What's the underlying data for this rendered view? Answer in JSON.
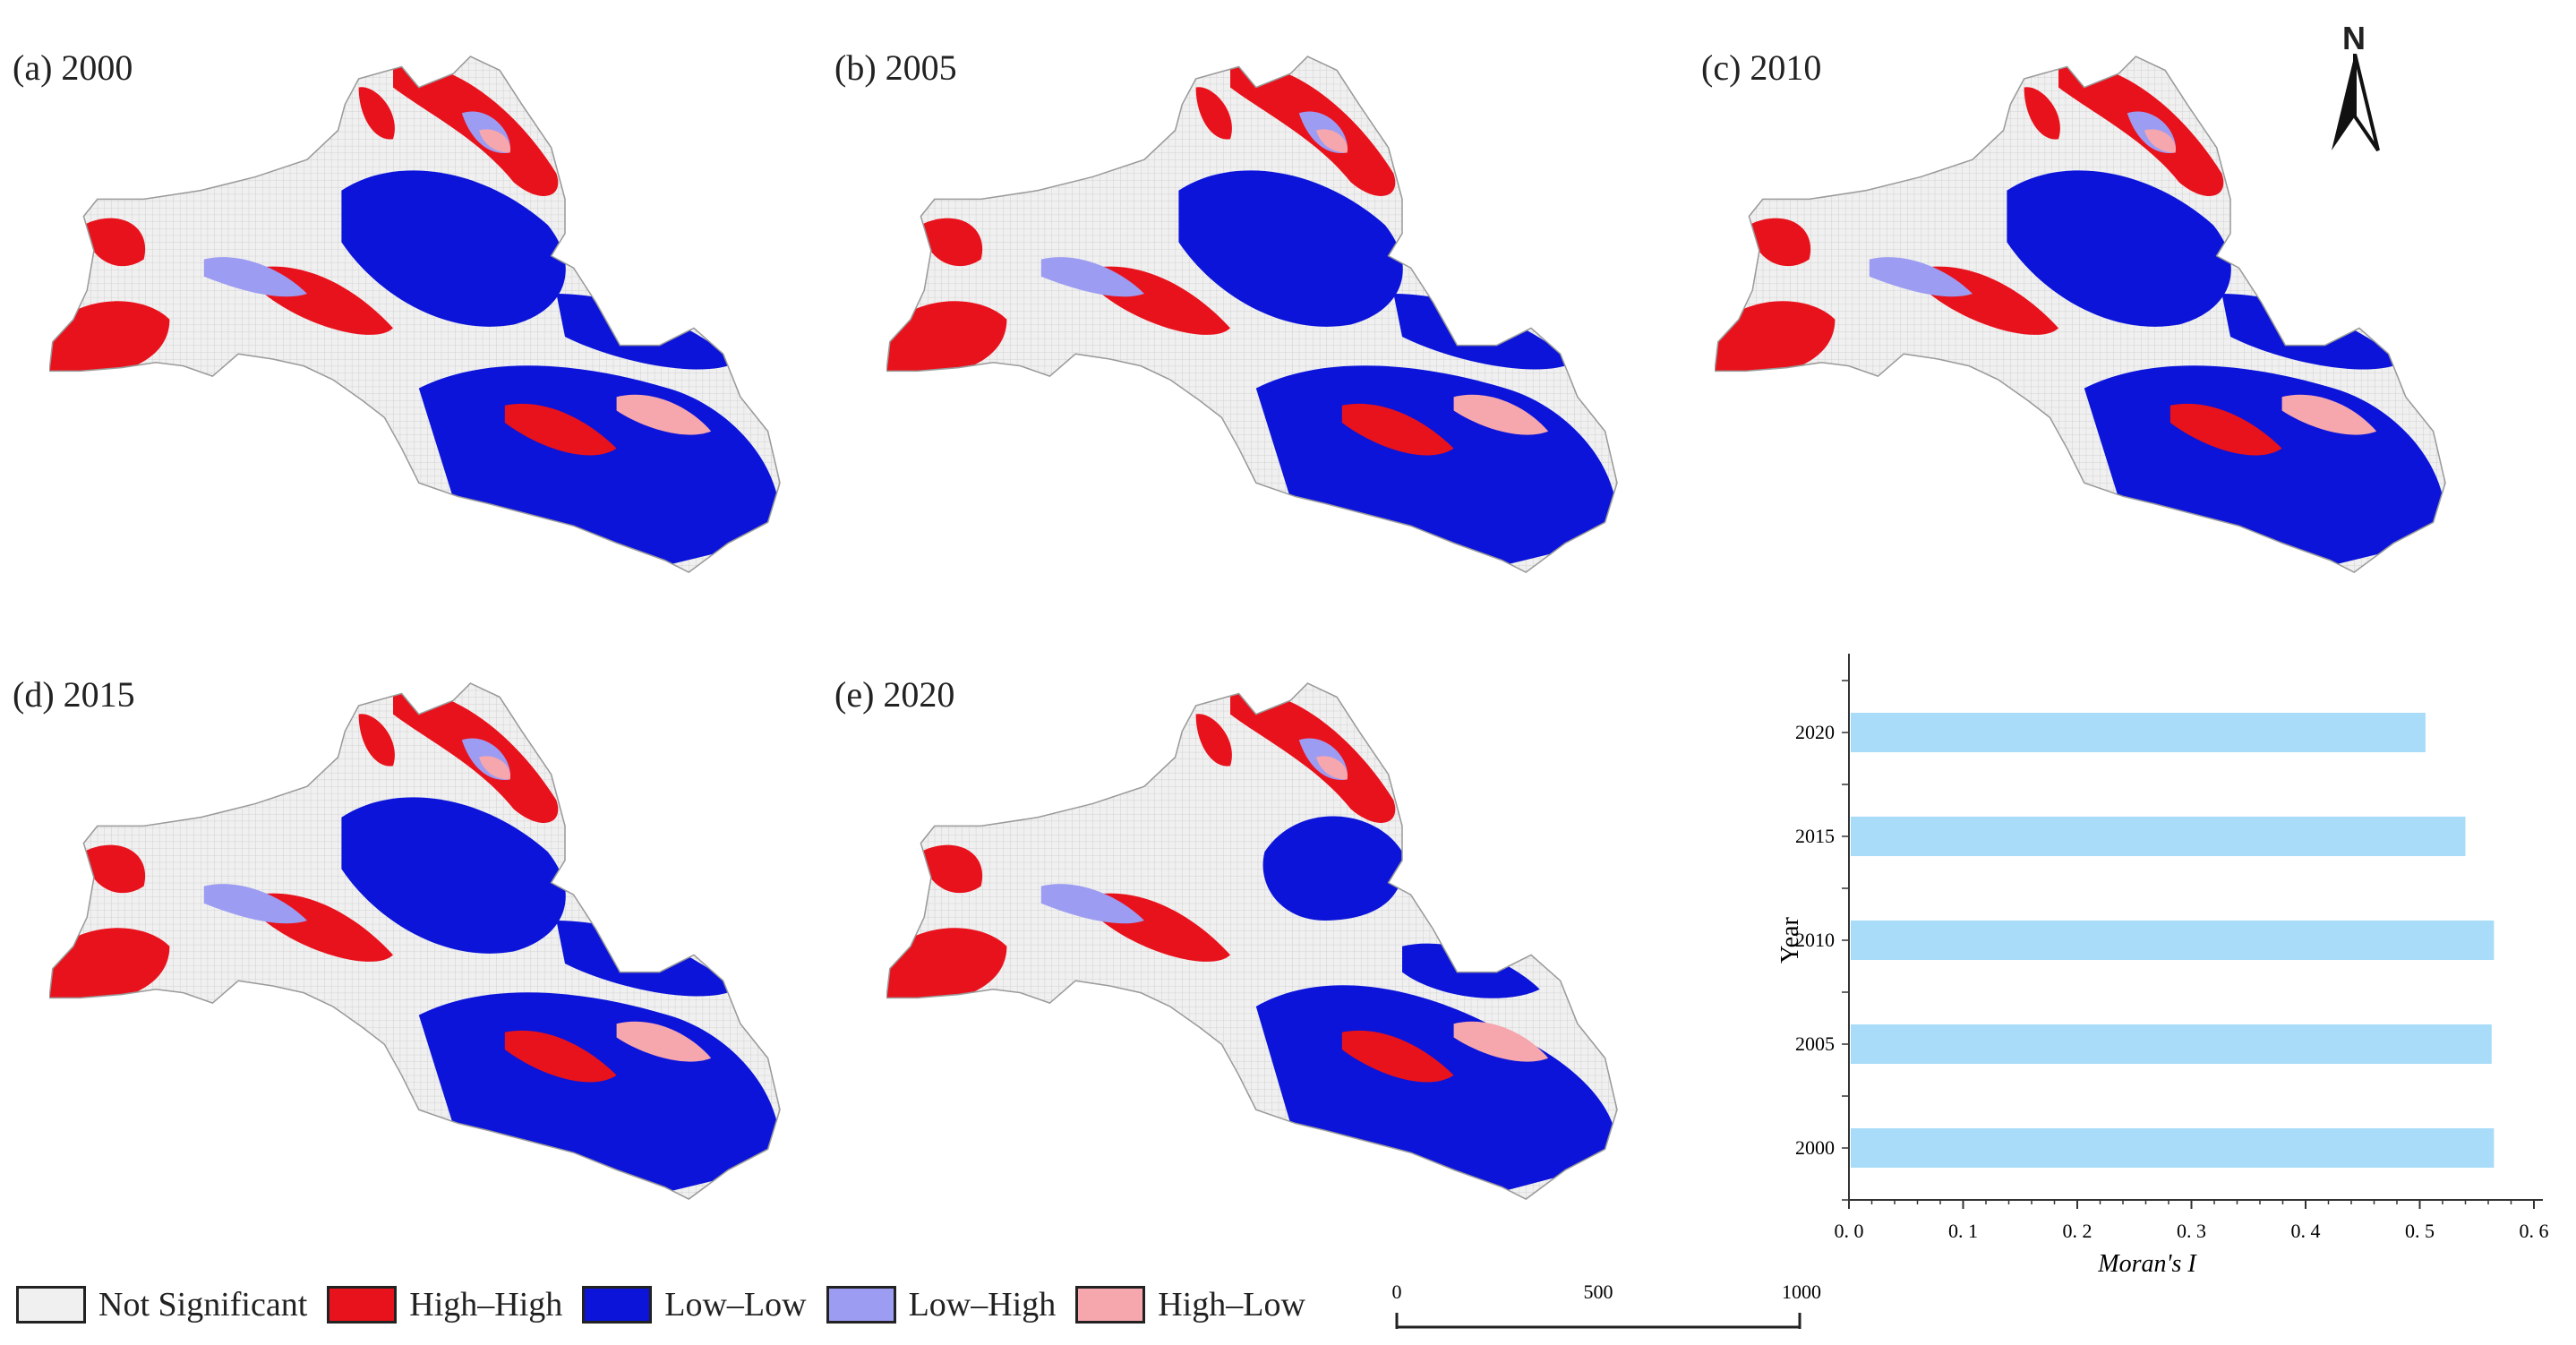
{
  "panels": [
    {
      "label": "(a)  2000",
      "year": "2000"
    },
    {
      "label": "(b)  2005",
      "year": "2005"
    },
    {
      "label": "(c)  2010",
      "year": "2010"
    },
    {
      "label": "(d)  2015",
      "year": "2015"
    },
    {
      "label": "(e)  2020",
      "year": "2020"
    }
  ],
  "north_arrow": {
    "label": "N",
    "icon": "north-arrow-icon"
  },
  "legend": {
    "items": [
      {
        "label": "Not Significant",
        "color": "#f0f0f0"
      },
      {
        "label": "High–High",
        "color": "#e8121c"
      },
      {
        "label": "Low–Low",
        "color": "#0b14d8"
      },
      {
        "label": "Low–High",
        "color": "#9c9cf2"
      },
      {
        "label": "High–Low",
        "color": "#f6a6ad"
      }
    ]
  },
  "scale_bar": {
    "ticks": [
      "0",
      "500",
      "1000 km"
    ]
  },
  "chart_data": {
    "type": "bar",
    "orientation": "horizontal",
    "categories": [
      "2000",
      "2005",
      "2010",
      "2015",
      "2020"
    ],
    "values": [
      0.565,
      0.563,
      0.565,
      0.54,
      0.505
    ],
    "xlabel": "Moran's I",
    "ylabel": "Year",
    "xlim": [
      0.0,
      0.6
    ],
    "xticks": [
      "0. 0",
      "0. 1",
      "0. 2",
      "0. 3",
      "0. 4",
      "0. 5",
      "0. 6"
    ],
    "bar_color": "#a8dcf8",
    "grid": false
  }
}
